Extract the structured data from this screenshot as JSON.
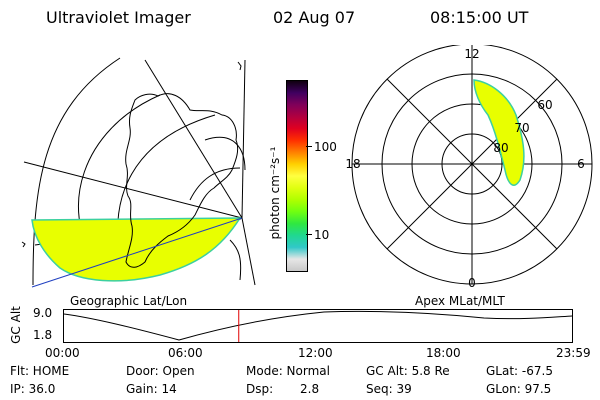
{
  "header": {
    "instrument": "Ultraviolet Imager",
    "date": "02 Aug 07",
    "time": "08:15:00 UT"
  },
  "geo_panel": {
    "label": "Geographic Lat/Lon"
  },
  "colorbar": {
    "unit_label": "photon cm⁻²s⁻¹",
    "ticks": [
      "100",
      "10"
    ],
    "colors": [
      "#c8c8c8",
      "#e6e6e6",
      "#30c8c8",
      "#20d890",
      "#30e840",
      "#70ff10",
      "#b0ff00",
      "#e0ff10",
      "#ffff40",
      "#ffd000",
      "#ff8000",
      "#ff3000",
      "#e00020",
      "#b00040",
      "#80005a",
      "#400060",
      "#100010"
    ]
  },
  "polar_panel": {
    "label": "Apex MLat/MLT",
    "mlt_labels": [
      "12",
      "18",
      "6",
      "0"
    ],
    "lat_labels": [
      "60",
      "70",
      "80"
    ]
  },
  "timeline": {
    "ylabel": "GC Alt",
    "y_ticks": [
      "9.0",
      "1.8"
    ],
    "x_ticks": [
      "00:00",
      "06:00",
      "12:00",
      "18:00",
      "23:59"
    ],
    "current_time_fraction": 0.344,
    "marker_color": "#e00000"
  },
  "info": {
    "flt": "Flt: HOME",
    "ip": "IP: 36.0",
    "door": "Door: Open",
    "gain": "Gain: 14",
    "mode": "Mode: Normal",
    "dsp": "Dsp:",
    "dsp_val": "2.8",
    "gcalt": "GC Alt: 5.8 Re",
    "seq": "Seq: 39",
    "glat": "GLat: -67.5",
    "glon": "GLon: 97.5"
  }
}
